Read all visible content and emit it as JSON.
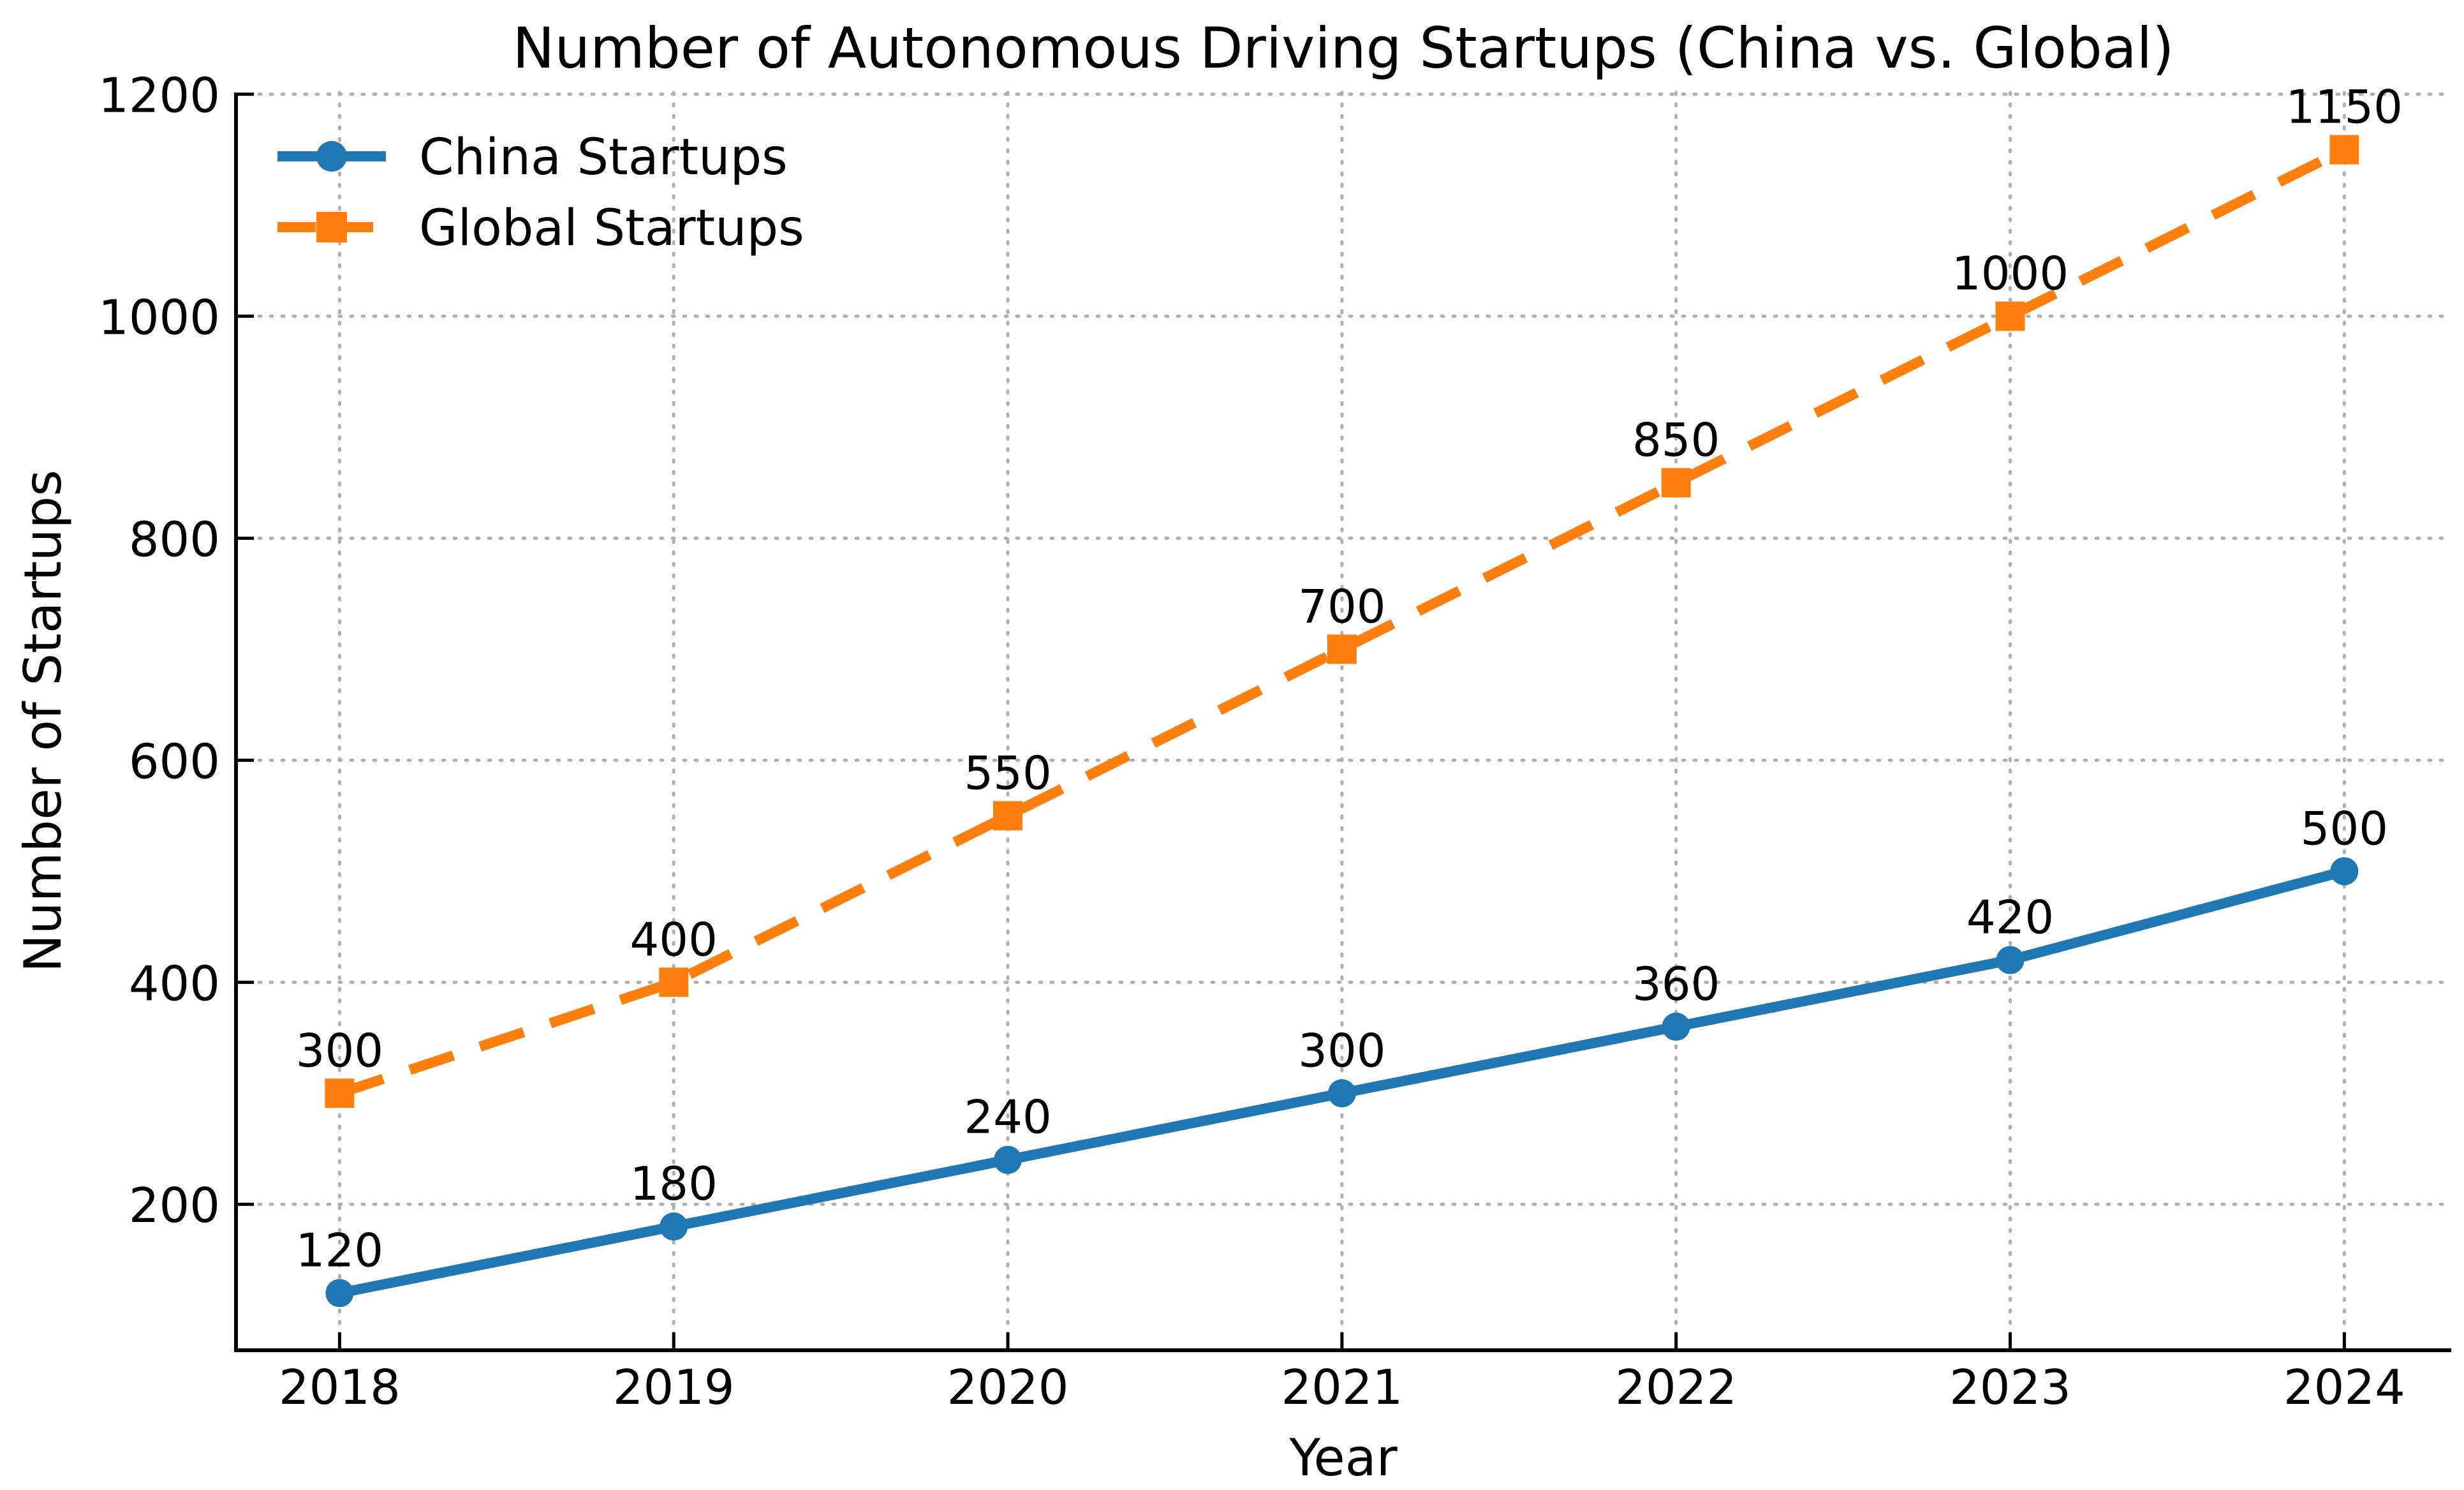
{
  "chart_data": {
    "type": "line",
    "title": "Number of Autonomous Driving Startups (China vs. Global)",
    "xlabel": "Year",
    "ylabel": "Number of Startups",
    "x": [
      2018,
      2019,
      2020,
      2021,
      2022,
      2023,
      2024
    ],
    "x_tick_labels": [
      "2018",
      "2019",
      "2020",
      "2021",
      "2022",
      "2023",
      "2024"
    ],
    "series": [
      {
        "name": "China Startups",
        "color": "#1f77b4",
        "marker": "circle",
        "linestyle": "solid",
        "values": [
          120,
          180,
          240,
          300,
          360,
          420,
          500
        ],
        "point_labels": [
          "120",
          "180",
          "240",
          "300",
          "360",
          "420",
          "500"
        ]
      },
      {
        "name": "Global Startups",
        "color": "#ff7f0e",
        "marker": "square",
        "linestyle": "dashed",
        "values": [
          300,
          400,
          550,
          700,
          850,
          1000,
          1150
        ],
        "point_labels": [
          "300",
          "400",
          "550",
          "700",
          "850",
          "1000",
          "1150"
        ]
      }
    ],
    "yticks": [
      200,
      400,
      600,
      800,
      1000,
      1200
    ],
    "ytick_labels": [
      "200",
      "400",
      "600",
      "800",
      "1000",
      "1200"
    ],
    "ylim": [
      68.5,
      1201.5
    ],
    "xlim": [
      2017.69,
      2024.32
    ],
    "grid": "dotted",
    "grid_color": "#b0b0b0",
    "spine_color": "#000000",
    "text_color": "#000000",
    "background_color": "#ffffff",
    "legend_position": "upper-left",
    "data_labels_shown": true
  }
}
